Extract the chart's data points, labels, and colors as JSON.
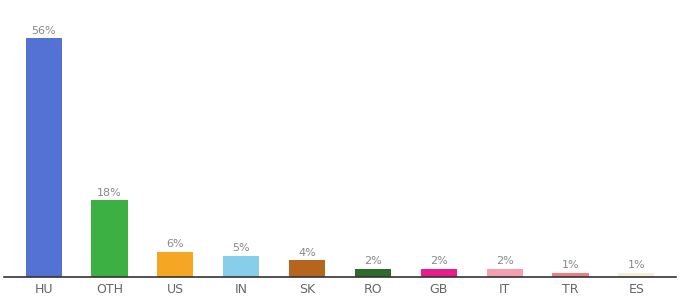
{
  "categories": [
    "HU",
    "OTH",
    "US",
    "IN",
    "SK",
    "RO",
    "GB",
    "IT",
    "TR",
    "ES"
  ],
  "values": [
    56,
    18,
    6,
    5,
    4,
    2,
    2,
    2,
    1,
    1
  ],
  "bar_colors": [
    "#5472d3",
    "#3cb043",
    "#f5a623",
    "#87ceeb",
    "#b5651d",
    "#2d6a2d",
    "#e91e8c",
    "#f4a0b0",
    "#f08080",
    "#f5f0d8"
  ],
  "label_color": "#888888",
  "bar_label_fontsize": 8,
  "xlabel_fontsize": 9,
  "background_color": "#ffffff",
  "ylim": [
    0,
    64
  ],
  "bar_width": 0.55
}
